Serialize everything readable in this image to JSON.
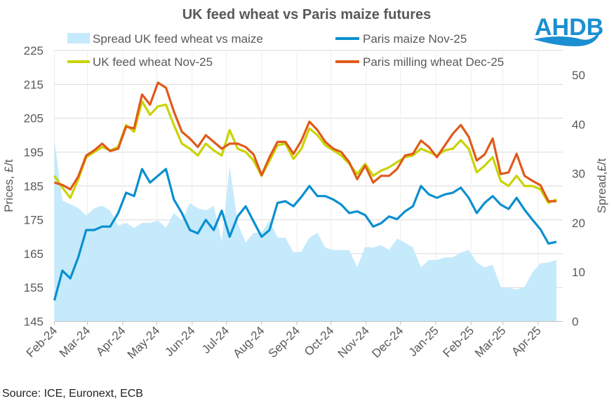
{
  "logo_text": "AHDB",
  "source": "Source: ICE, Euronext, ECB",
  "chart_data": {
    "type": "line",
    "title": "UK feed wheat vs Paris maize futures",
    "ylabel": "Prices, £/t",
    "y2label": "Spread,£/t",
    "xlabel": "",
    "ylim": [
      145,
      225
    ],
    "yticks": [
      145,
      155,
      165,
      175,
      185,
      195,
      205,
      215,
      225
    ],
    "y2lim": [
      0,
      55
    ],
    "y2ticks": [
      0,
      10,
      20,
      30,
      40,
      50
    ],
    "xticks": [
      "Feb-24",
      "Mar-24",
      "Apr-24",
      "May-24",
      "Jun-24",
      "Jul-24",
      "Aug-24",
      "Sep-24",
      "Oct-24",
      "Nov-24",
      "Dec-24",
      "Jan-25",
      "Feb-25",
      "Mar-25",
      "Apr-25"
    ],
    "xtick_dates": [
      "2024-02-01",
      "2024-03-01",
      "2024-04-01",
      "2024-05-01",
      "2024-06-01",
      "2024-07-01",
      "2024-08-01",
      "2024-09-01",
      "2024-10-01",
      "2024-11-01",
      "2024-12-01",
      "2025-01-01",
      "2025-02-01",
      "2025-03-01",
      "2025-04-01"
    ],
    "grid": true,
    "legend_position": "top",
    "x": [
      "2024-02-01",
      "2024-02-08",
      "2024-02-15",
      "2024-02-22",
      "2024-02-29",
      "2024-03-07",
      "2024-03-14",
      "2024-03-21",
      "2024-03-28",
      "2024-04-04",
      "2024-04-11",
      "2024-04-18",
      "2024-04-25",
      "2024-05-02",
      "2024-05-09",
      "2024-05-16",
      "2024-05-23",
      "2024-05-30",
      "2024-06-06",
      "2024-06-13",
      "2024-06-20",
      "2024-06-27",
      "2024-07-04",
      "2024-07-11",
      "2024-07-18",
      "2024-07-25",
      "2024-08-01",
      "2024-08-08",
      "2024-08-15",
      "2024-08-22",
      "2024-08-29",
      "2024-09-05",
      "2024-09-12",
      "2024-09-19",
      "2024-09-26",
      "2024-10-03",
      "2024-10-10",
      "2024-10-17",
      "2024-10-24",
      "2024-10-31",
      "2024-11-07",
      "2024-11-14",
      "2024-11-21",
      "2024-11-28",
      "2024-12-05",
      "2024-12-12",
      "2024-12-19",
      "2024-12-26",
      "2025-01-02",
      "2025-01-09",
      "2025-01-16",
      "2025-01-23",
      "2025-01-30",
      "2025-02-06",
      "2025-02-13",
      "2025-02-20",
      "2025-02-27",
      "2025-03-06",
      "2025-03-13",
      "2025-03-20",
      "2025-03-27",
      "2025-04-03",
      "2025-04-10",
      "2025-04-17"
    ],
    "series": [
      {
        "name": "Spread UK feed wheat vs maize",
        "kind": "area",
        "axis": "right",
        "color": "#c5eafb",
        "values": [
          36.8,
          24.5,
          23.8,
          23,
          21.5,
          23,
          23.5,
          22.5,
          19.5,
          20,
          19,
          20,
          20,
          20.5,
          19,
          22,
          20.5,
          24,
          23,
          22.5,
          23.5,
          16.3,
          31.5,
          20,
          16,
          18,
          18,
          20.5,
          17,
          17,
          14,
          14.2,
          17,
          18,
          15,
          14.5,
          14.5,
          14.5,
          11,
          15.1,
          15,
          15.5,
          14.5,
          16.8,
          16,
          15,
          11,
          12.5,
          12.5,
          13,
          13,
          14,
          14.5,
          12,
          11,
          11.5,
          7,
          6.8,
          6.5,
          7,
          10,
          11.8,
          12,
          12.5
        ]
      },
      {
        "name": "Paris maize Nov-25",
        "kind": "line",
        "axis": "left",
        "color": "#0a8fd0",
        "values": [
          151.2,
          160,
          157.7,
          164,
          172,
          172,
          173,
          173,
          177,
          183,
          182,
          190,
          186,
          188,
          190,
          181,
          177,
          172,
          171,
          175,
          172,
          177.7,
          170,
          176,
          179,
          174.5,
          170,
          172,
          180,
          180.5,
          179,
          181.8,
          185,
          182,
          182,
          181,
          179.5,
          177,
          177.5,
          176.4,
          173,
          174,
          176,
          175.2,
          177.5,
          179,
          185,
          182.5,
          181.5,
          182.5,
          183,
          184.5,
          181.5,
          177,
          180,
          182,
          179.5,
          178.2,
          181.5,
          178,
          175,
          172.2,
          168,
          168.5
        ]
      },
      {
        "name": "UK feed wheat Nov-25",
        "kind": "line",
        "axis": "left",
        "color": "#c8d400",
        "values": [
          188,
          184.5,
          181.5,
          187,
          193.5,
          195,
          196.5,
          195.5,
          196.5,
          203,
          201,
          210,
          206,
          208.5,
          209,
          203,
          197.5,
          196,
          194,
          197.5,
          195.5,
          194,
          201.5,
          196,
          195,
          192.5,
          188,
          192.5,
          197,
          197.5,
          193,
          196,
          202,
          200,
          197,
          195.5,
          194,
          191.5,
          188.5,
          191.5,
          188,
          189.5,
          190.5,
          192,
          193.5,
          194,
          196,
          195,
          194,
          195.5,
          196,
          198.5,
          196,
          189,
          191,
          193.5,
          186.5,
          185,
          188,
          185,
          185,
          184,
          180,
          181
        ]
      },
      {
        "name": "Paris milling wheat Dec-25",
        "kind": "line",
        "axis": "left",
        "color": "#e05a1a",
        "values": [
          186,
          185.3,
          184,
          187.8,
          194,
          195.5,
          197.5,
          195.3,
          196,
          202.5,
          202,
          212,
          209,
          215.5,
          214,
          207,
          201,
          199,
          196.5,
          200,
          198,
          196,
          197.5,
          197.5,
          196.5,
          194.3,
          188.2,
          193.5,
          198,
          198,
          194.5,
          198.4,
          204,
          201.5,
          198,
          196,
          195,
          192,
          187,
          191,
          186,
          188,
          188,
          190,
          194,
          194.5,
          198.4,
          196.5,
          193.5,
          197,
          200.4,
          203,
          199.5,
          192.5,
          194.3,
          199,
          188.5,
          189,
          194.5,
          188,
          186.5,
          185.2,
          180.5,
          180.5
        ]
      }
    ]
  }
}
